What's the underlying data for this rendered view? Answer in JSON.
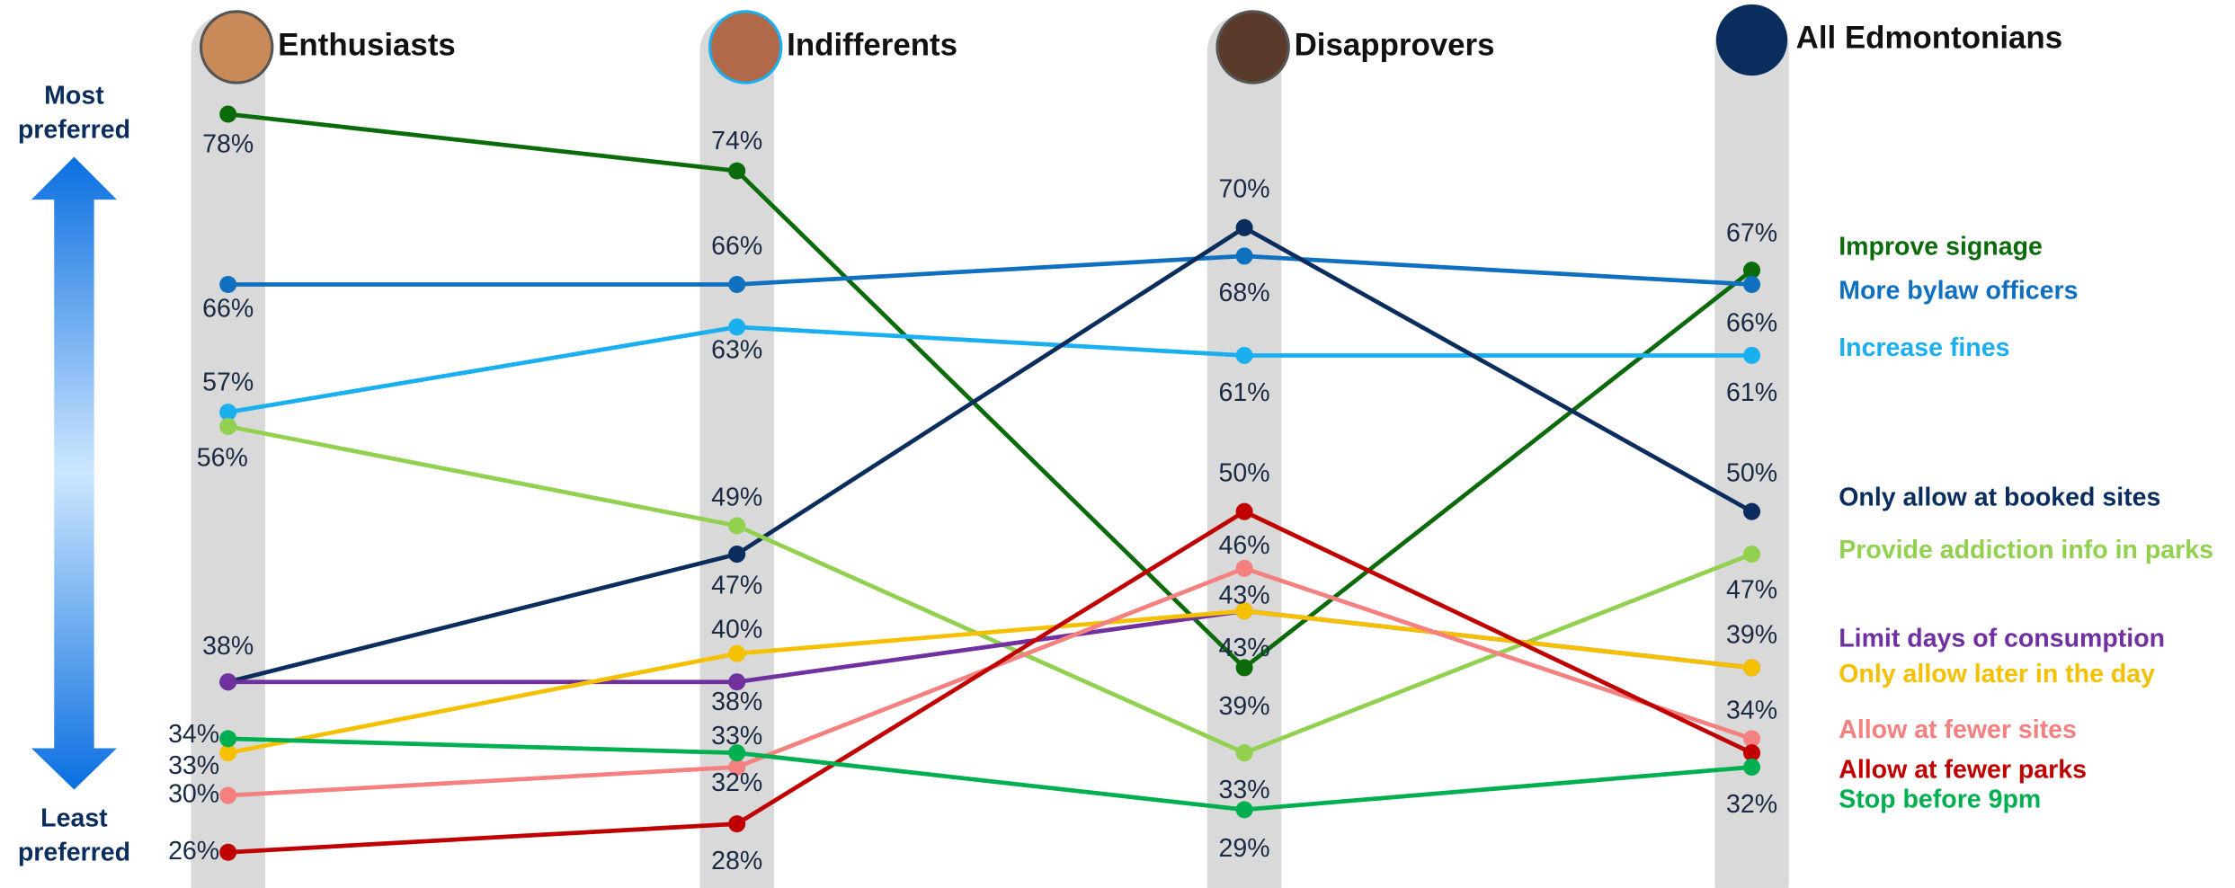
{
  "chart_data": {
    "type": "line",
    "categories": [
      "Enthusiasts",
      "Indifferents",
      "Disapprovers",
      "All Edmontonians"
    ],
    "y_top_label": [
      "Most",
      "preferred"
    ],
    "y_bottom_label": [
      "Least",
      "preferred"
    ],
    "ylim": [
      26,
      78
    ],
    "series": [
      {
        "name": "Improve signage",
        "color": "#0b6b0b",
        "values": [
          78,
          74,
          39,
          67
        ],
        "value_labels": [
          "78%",
          "74%",
          "39%",
          "67%"
        ]
      },
      {
        "name": "More bylaw officers",
        "color": "#1070c0",
        "values": [
          66,
          66,
          68,
          66
        ],
        "value_labels": [
          "66%",
          "66%",
          "68%",
          "66%"
        ]
      },
      {
        "name": "Increase fines",
        "color": "#1ab0f0",
        "values": [
          57,
          63,
          61,
          61
        ],
        "value_labels": [
          "57%",
          "63%",
          "61%",
          "61%"
        ]
      },
      {
        "name": "Only allow at booked sites",
        "color": "#0a2d5e",
        "values": [
          38,
          47,
          70,
          50
        ],
        "value_labels": [
          "38%",
          "47%",
          "70%",
          "50%"
        ]
      },
      {
        "name": "Provide addiction info in parks",
        "color": "#92d050",
        "values": [
          56,
          49,
          33,
          47
        ],
        "value_labels": [
          "56%",
          "49%",
          "33%",
          "47%"
        ]
      },
      {
        "name": "Limit days of consumption",
        "color": "#7030a0",
        "values": [
          38,
          38,
          43,
          39
        ],
        "value_labels": [
          null,
          "38%",
          "43%",
          "39%"
        ]
      },
      {
        "name": "Only allow later in the day",
        "color": "#f5c000",
        "values": [
          33,
          40,
          43,
          39
        ],
        "value_labels": [
          "33%",
          "40%",
          "43%",
          null
        ]
      },
      {
        "name": "Allow at fewer sites",
        "color": "#f48080",
        "values": [
          30,
          32,
          46,
          34
        ],
        "value_labels": [
          "30%",
          "32%",
          "46%",
          "34%"
        ]
      },
      {
        "name": "Allow at fewer parks",
        "color": "#c00000",
        "values": [
          26,
          28,
          50,
          33
        ],
        "value_labels": [
          "26%",
          "28%",
          "50%",
          null
        ]
      },
      {
        "name": "Stop before 9pm",
        "color": "#00b050",
        "values": [
          34,
          33,
          29,
          32
        ],
        "value_labels": [
          "34%",
          "33%",
          "29%",
          "32%"
        ]
      }
    ]
  }
}
